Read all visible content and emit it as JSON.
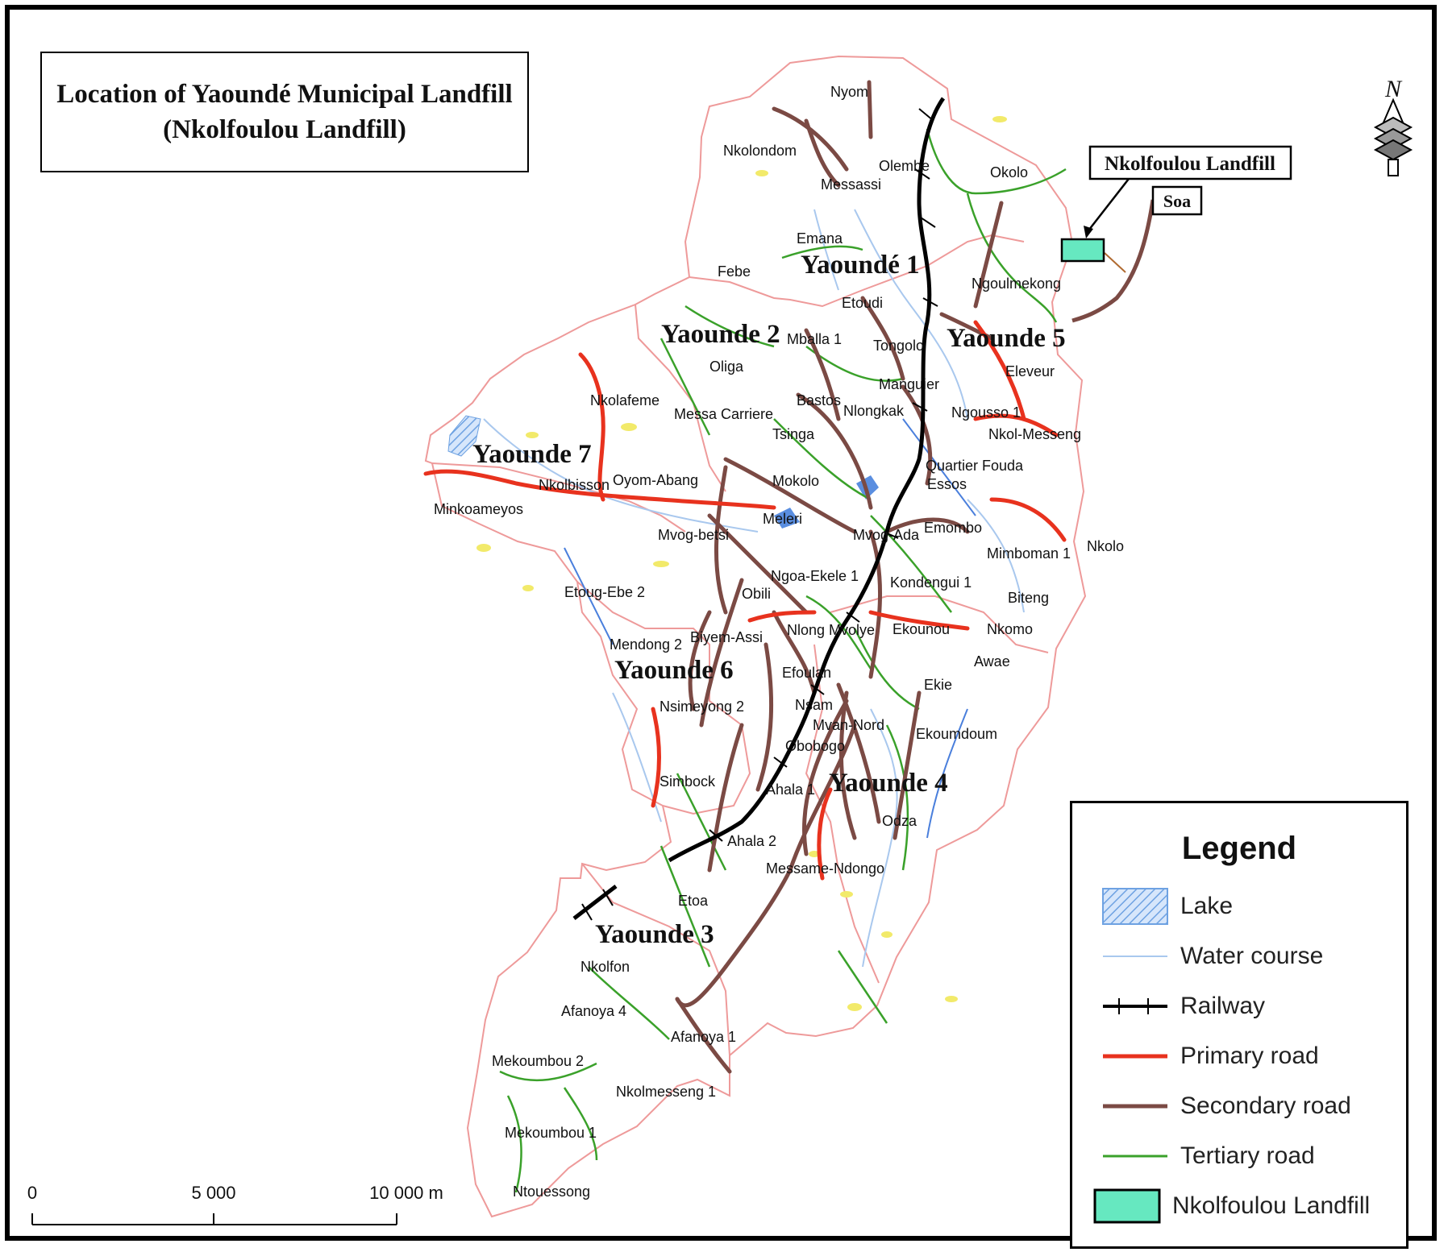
{
  "title": {
    "line1": "Location of Yaoundé Municipal Landfill",
    "line2": "(Nkolfoulou Landfill)"
  },
  "north_arrow": {
    "label": "N"
  },
  "callouts": {
    "landfill": "Nkolfoulou Landfill",
    "soa": "Soa"
  },
  "districts": [
    "Yaoundé 1",
    "Yaounde 2",
    "Yaounde 3",
    "Yaounde 4",
    "Yaounde 5",
    "Yaounde 6",
    "Yaounde 7"
  ],
  "places": [
    "Nyom",
    "Nkolondom",
    "Olembe",
    "Messassi",
    "Okolo",
    "Emana",
    "Febe",
    "Ngoulmekong",
    "Etoudi",
    "Mballa 1",
    "Tongolo",
    "Oliga",
    "Eleveur",
    "Manguier",
    "Nkolafeme",
    "Bastos",
    "Messa Carriere",
    "Nlongkak",
    "Ngousso 1",
    "Tsinga",
    "Nkol-Messeng",
    "Quartier Fouda",
    "Nkolbisson",
    "Oyom-Abang",
    "Mokolo",
    "Essos",
    "Minkoameyos",
    "Meleri",
    "Mvog-Ada",
    "Emombo",
    "Mvog-betsi",
    "Mimboman 1",
    "Nkolo",
    "Ngoa-Ekele 1",
    "Kondengui 1",
    "Etoug-Ebe 2",
    "Obili",
    "Biteng",
    "Mendong 2",
    "Biyem-Assi",
    "Nlong Mvolye",
    "Ekounou",
    "Nkomo",
    "Efoulan",
    "Awae",
    "Nsimeyong 2",
    "Nsam",
    "Ekie",
    "Mvan-Nord",
    "Obobogo",
    "Ekoumdoum",
    "Simbock",
    "Ahala 1",
    "Odza",
    "Ahala 2",
    "Messame-Ndongo",
    "Etoa",
    "Nkolfon",
    "Afanoya 4",
    "Afanoya 1",
    "Mekoumbou 2",
    "Nkolmesseng 1",
    "Mekoumbou 1",
    "Ntouessong"
  ],
  "legend": {
    "title": "Legend",
    "items": [
      {
        "label": "Lake",
        "kind": "lake",
        "color": "#8fb8e8"
      },
      {
        "label": "Water course",
        "kind": "water",
        "color": "#a9c8ee"
      },
      {
        "label": "Railway",
        "kind": "railway",
        "color": "#000000"
      },
      {
        "label": "Primary road",
        "kind": "primary",
        "color": "#e8321e"
      },
      {
        "label": "Secondary road",
        "kind": "secondary",
        "color": "#7b4a44"
      },
      {
        "label": "Tertiary road",
        "kind": "tertiary",
        "color": "#3aa12a"
      },
      {
        "label": "Nkolfoulou Landfill",
        "kind": "landfill",
        "color": "#66e8c0"
      }
    ]
  },
  "scale_bar": {
    "labels": [
      "0",
      "5 000",
      "10 000 m"
    ]
  },
  "colors": {
    "boundary": "#ee9a9a",
    "lake": "#8fb8e8",
    "water": "#a9c8ee",
    "railway": "#000000",
    "primary": "#e8321e",
    "secondary": "#7b4a44",
    "tertiary": "#3aa12a",
    "landfill": "#66e8c0",
    "builtup": "#f2ea6a"
  }
}
